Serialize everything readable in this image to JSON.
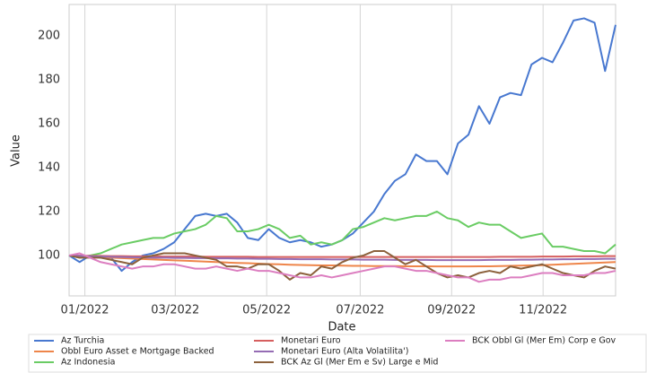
{
  "chart_data": {
    "type": "line",
    "xlabel": "Date",
    "ylabel": "Value",
    "x": [
      0,
      1,
      2,
      3,
      4,
      5,
      6,
      7,
      8,
      9,
      10,
      11,
      12,
      13,
      14,
      15,
      16,
      17,
      18,
      19,
      20,
      21,
      22,
      23,
      24,
      25,
      26,
      27,
      28,
      29,
      30,
      31,
      32,
      33,
      34,
      35,
      36,
      37,
      38,
      39,
      40,
      41,
      42,
      43,
      44,
      45,
      46,
      47,
      48,
      49,
      50,
      51,
      52
    ],
    "xlim": [
      0,
      52
    ],
    "xticks": [
      {
        "value": 1.5,
        "label": "01/2022"
      },
      {
        "value": 10.1,
        "label": "03/2022"
      },
      {
        "value": 18.8,
        "label": "05/2022"
      },
      {
        "value": 27.7,
        "label": "07/2022"
      },
      {
        "value": 36.4,
        "label": "09/2022"
      },
      {
        "value": 45.1,
        "label": "11/2022"
      }
    ],
    "ylim": [
      81.6,
      214.3
    ],
    "yticks": [
      100,
      120,
      140,
      160,
      180,
      200
    ],
    "grid": "x",
    "legend": "bottom",
    "series": [
      {
        "name": "Az Turchia",
        "color": "#4878d0",
        "values": [
          100,
          97,
          100,
          99,
          99,
          93,
          97,
          100,
          101,
          103,
          106,
          112,
          118,
          119,
          118,
          119,
          115,
          108,
          107,
          112,
          108,
          106,
          107,
          106,
          104,
          105,
          107,
          110,
          115,
          120,
          128,
          134,
          137,
          146,
          143,
          143,
          137,
          151,
          155,
          168,
          160,
          172,
          174,
          173,
          187,
          190,
          188,
          197,
          207,
          208,
          206,
          184,
          205
        ]
      },
      {
        "name": "Obbl Euro Asset e Mortgage Backed",
        "color": "#ee854a",
        "values": [
          100,
          99.8,
          99.5,
          99.2,
          99,
          98.8,
          98.6,
          98.4,
          98.2,
          98,
          97.8,
          97.6,
          97.4,
          97.2,
          97,
          96.8,
          96.6,
          96.5,
          96.3,
          96.1,
          96,
          95.8,
          95.7,
          95.6,
          95.5,
          95.5,
          95.4,
          95.3,
          95.3,
          95.2,
          95.2,
          95.2,
          95.1,
          95.1,
          95.1,
          95,
          95,
          95,
          95,
          95.1,
          95.1,
          95.2,
          95.3,
          95.4,
          95.5,
          95.6,
          95.8,
          96,
          96.2,
          96.4,
          96.6,
          96.8,
          97
        ]
      },
      {
        "name": "Az Indonesia",
        "color": "#6acc64",
        "values": [
          100,
          99,
          100,
          101,
          103,
          105,
          106,
          107,
          108,
          108,
          110,
          111,
          112,
          114,
          118,
          117,
          111,
          111,
          112,
          114,
          112,
          108,
          109,
          105,
          106,
          105,
          107,
          112,
          113,
          115,
          117,
          116,
          117,
          118,
          118,
          120,
          117,
          116,
          113,
          115,
          114,
          114,
          111,
          108,
          109,
          110,
          104,
          104,
          103,
          102,
          102,
          101,
          105
        ]
      },
      {
        "name": "Monetari Euro",
        "color": "#d65f5f",
        "values": [
          100,
          99.9,
          99.8,
          99.8,
          99.7,
          99.7,
          99.6,
          99.6,
          99.6,
          99.5,
          99.5,
          99.5,
          99.5,
          99.4,
          99.4,
          99.4,
          99.4,
          99.4,
          99.3,
          99.3,
          99.3,
          99.3,
          99.3,
          99.3,
          99.3,
          99.3,
          99.3,
          99.3,
          99.3,
          99.3,
          99.3,
          99.3,
          99.3,
          99.3,
          99.3,
          99.3,
          99.3,
          99.3,
          99.3,
          99.3,
          99.3,
          99.4,
          99.4,
          99.4,
          99.4,
          99.5,
          99.5,
          99.5,
          99.6,
          99.6,
          99.6,
          99.7,
          99.7
        ]
      },
      {
        "name": "Monetari Euro (Alta Volatilita')",
        "color": "#956cb4",
        "values": [
          100,
          99.8,
          99.6,
          99.5,
          99.4,
          99.3,
          99.2,
          99.1,
          99,
          99,
          98.9,
          98.9,
          98.8,
          98.8,
          98.7,
          98.7,
          98.6,
          98.6,
          98.5,
          98.5,
          98.4,
          98.4,
          98.3,
          98.3,
          98.3,
          98.2,
          98.2,
          98.2,
          98.1,
          98.1,
          98.1,
          98,
          98,
          98,
          98,
          97.9,
          97.9,
          97.9,
          97.9,
          97.9,
          98,
          98,
          98,
          98.1,
          98.1,
          98.2,
          98.2,
          98.3,
          98.3,
          98.4,
          98.4,
          98.5,
          98.5
        ]
      },
      {
        "name": "BCK Az Gl (Mer Em e Sv) Large e Mid",
        "color": "#8c613c",
        "values": [
          100,
          99,
          99,
          99,
          98,
          97,
          96,
          99,
          100,
          101,
          101,
          101,
          100,
          99,
          98,
          95,
          95,
          94,
          96,
          96,
          93,
          89,
          92,
          91,
          95,
          94,
          97,
          99,
          100,
          102,
          102,
          99,
          96,
          98,
          95,
          92,
          90,
          91,
          90,
          92,
          93,
          92,
          95,
          94,
          95,
          96,
          94,
          92,
          91,
          90,
          93,
          95,
          94
        ]
      },
      {
        "name": "BCK Obbl Gl (Mer Em) Corp e Gov",
        "color": "#dc7ec0",
        "values": [
          100,
          101,
          99,
          97,
          96,
          95,
          94,
          95,
          95,
          96,
          96,
          95,
          94,
          94,
          95,
          94,
          93,
          94,
          93,
          93,
          92,
          91,
          90,
          90,
          91,
          90,
          91,
          92,
          93,
          94,
          95,
          95,
          94,
          93,
          93,
          92,
          91,
          90,
          90,
          88,
          89,
          89,
          90,
          90,
          91,
          92,
          92,
          91,
          91,
          91,
          92,
          92,
          93
        ]
      }
    ]
  }
}
